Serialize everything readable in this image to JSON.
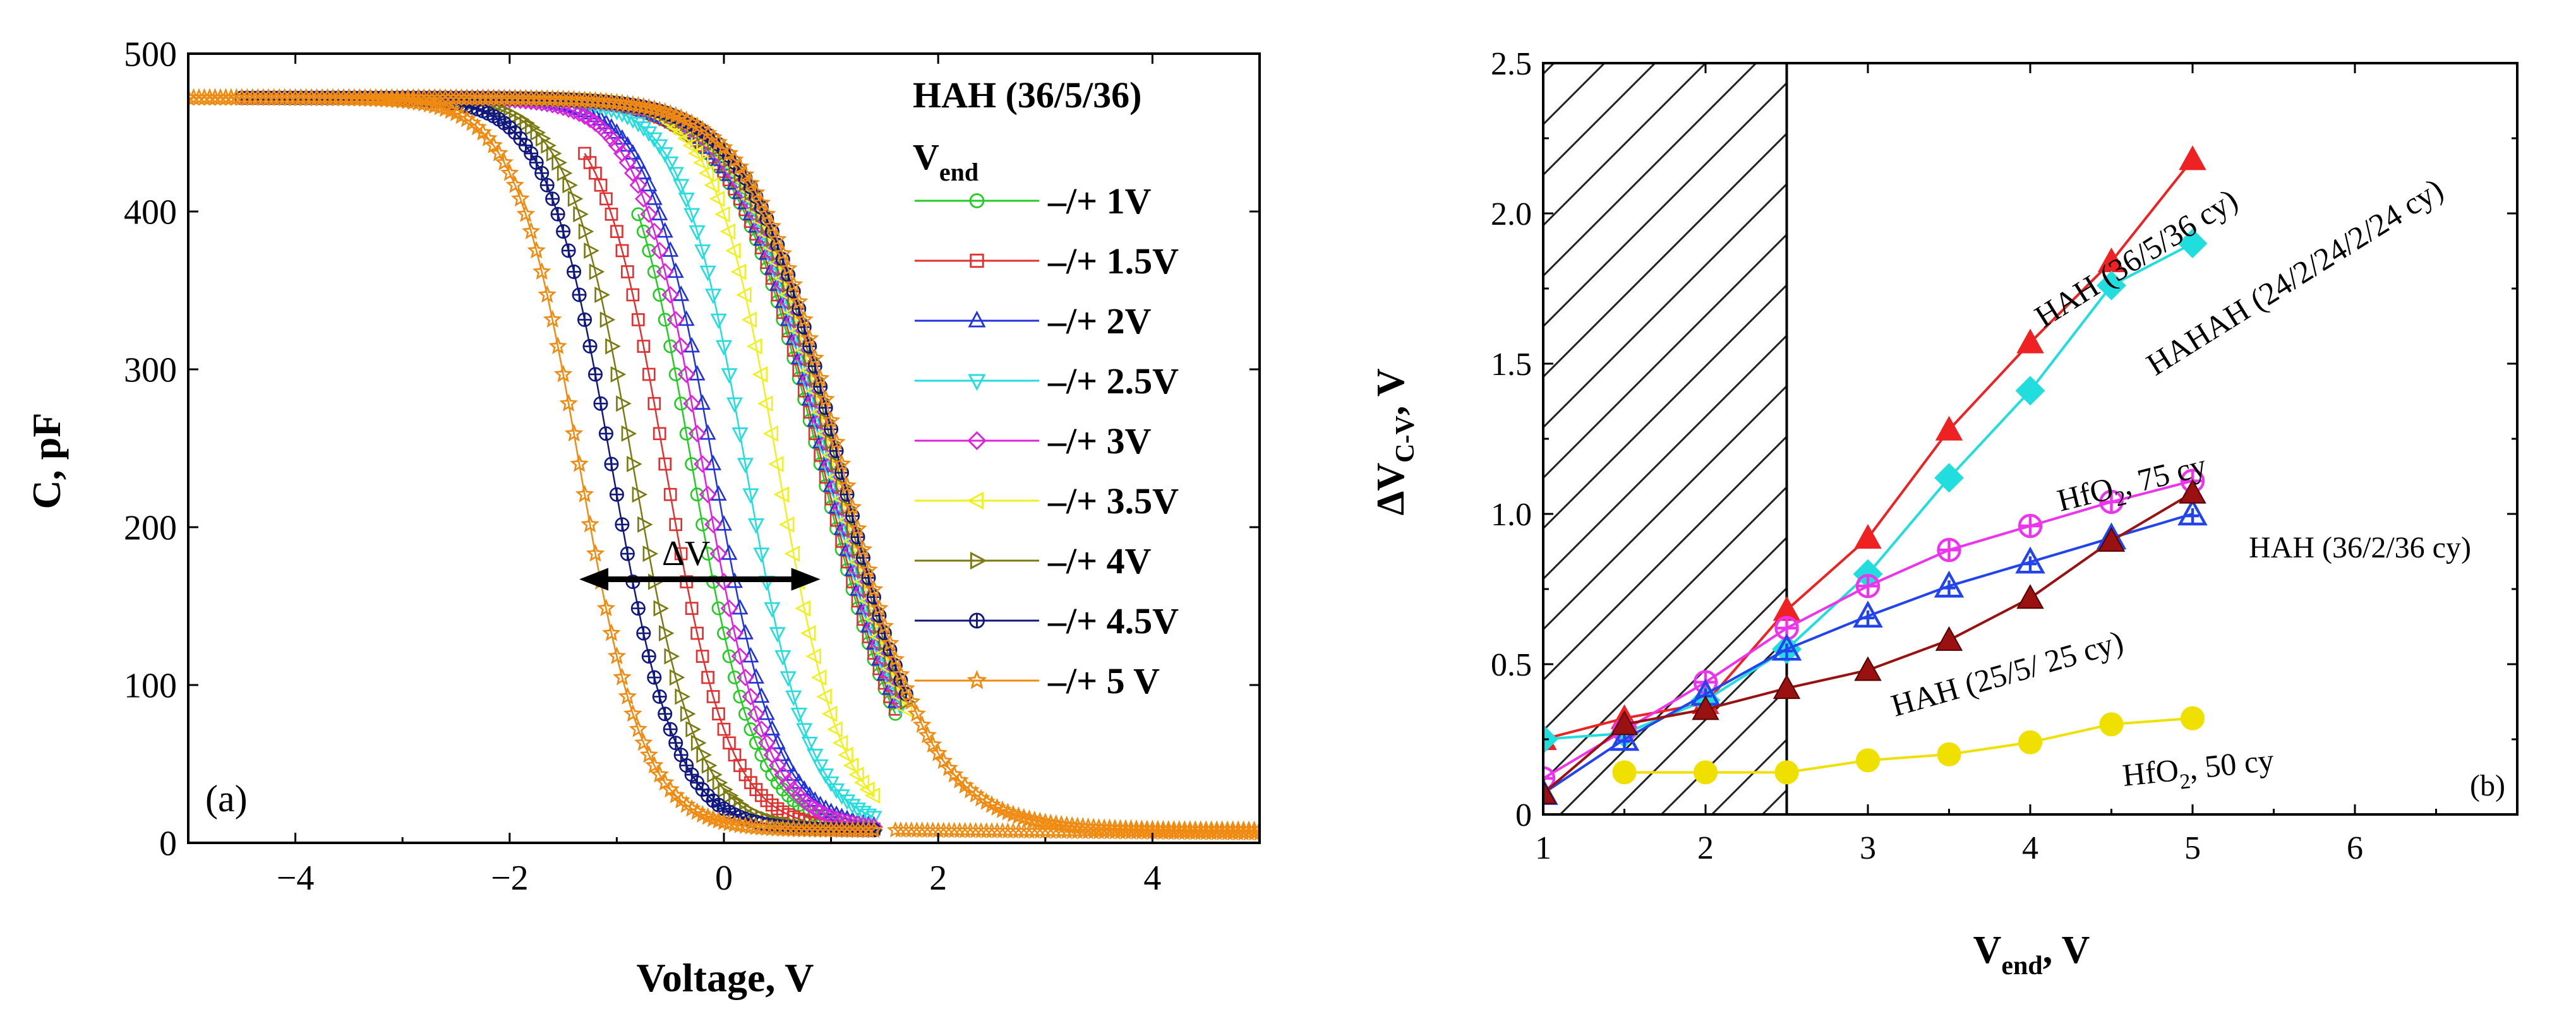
{
  "chart_data": [
    {
      "type": "line",
      "panel_label": "(a)",
      "xlabel": "Voltage, V",
      "ylabel": "C, pF",
      "xlim": [
        -5,
        5
      ],
      "ylim": [
        0,
        500
      ],
      "x_ticks": [
        -4,
        -2,
        0,
        2,
        4
      ],
      "x_tick_labels": [
        "−4",
        "−2",
        "0",
        "2",
        "4"
      ],
      "y_ticks": [
        0,
        100,
        200,
        300,
        400,
        500
      ],
      "y_tick_labels": [
        "0",
        "100",
        "200",
        "300",
        "400",
        "500"
      ],
      "legend_title": "HAH (36/5/36)",
      "legend_subtitle": "V",
      "legend_subtitle_sub": "end",
      "legend_position": "top-right",
      "annotation": "ΔV",
      "delta_v_arrow": [
        -1.35,
        0.9,
        167
      ],
      "cmax": 472,
      "cmin": 8,
      "series": [
        {
          "name": "–/+ 1V",
          "vend": 1.0,
          "color": "#22cc22",
          "marker": "circle",
          "left_v0": -0.3,
          "right_v0": 0.9
        },
        {
          "name": "–/+ 1.5V",
          "vend": 1.5,
          "color": "#e03030",
          "marker": "square",
          "left_v0": -0.55,
          "right_v0": 0.92
        },
        {
          "name": "–/+ 2V",
          "vend": 2.0,
          "color": "#2233dd",
          "marker": "triangle-up",
          "left_v0": -0.1,
          "right_v0": 0.95
        },
        {
          "name": "–/+ 2.5V",
          "vend": 2.5,
          "color": "#22dddd",
          "marker": "triangle-down",
          "left_v0": 0.2,
          "right_v0": 0.98
        },
        {
          "name": "–/+ 3V",
          "vend": 3.0,
          "color": "#dd22dd",
          "marker": "diamond",
          "left_v0": -0.2,
          "right_v0": 1.0
        },
        {
          "name": "–/+ 3.5V",
          "vend": 3.5,
          "color": "#f0f020",
          "marker": "triangle-left",
          "left_v0": 0.5,
          "right_v0": 1.02
        },
        {
          "name": "–/+ 4V",
          "vend": 4.0,
          "color": "#7a7a10",
          "marker": "triangle-right",
          "left_v0": -0.85,
          "right_v0": 1.05
        },
        {
          "name": "–/+ 4.5V",
          "vend": 4.5,
          "color": "#101880",
          "marker": "circle-plus",
          "left_v0": -1.05,
          "right_v0": 1.08
        },
        {
          "name": "–/+ 5 V",
          "vend": 5.0,
          "color": "#f08a10",
          "marker": "star",
          "left_v0": -1.35,
          "right_v0": 1.1
        }
      ]
    },
    {
      "type": "line",
      "panel_label": "(b)",
      "xlabel": "V",
      "xlabel_sub": "end",
      "xlabel_suffix": ", V",
      "ylabel": "ΔV",
      "ylabel_sub": "C-V",
      "ylabel_suffix": ", V",
      "xlim": [
        1,
        7
      ],
      "ylim": [
        0,
        2.5
      ],
      "x_ticks": [
        1,
        2,
        3,
        4,
        5,
        6
      ],
      "x_tick_labels": [
        "1",
        "2",
        "3",
        "4",
        "5",
        "6"
      ],
      "y_ticks": [
        0,
        0.5,
        1.0,
        1.5,
        2.0,
        2.5
      ],
      "y_tick_labels": [
        "0",
        "0.5",
        "1.0",
        "1.5",
        "2.0",
        "2.5"
      ],
      "hatched_region_x": [
        1,
        2.5
      ],
      "x": [
        1,
        1.5,
        2,
        2.5,
        3,
        3.5,
        4,
        4.5,
        5
      ],
      "series": [
        {
          "name": "HAH (36/5/36 cy)",
          "color": "#ee2222",
          "marker": "triangle-filled",
          "values": [
            0.25,
            0.32,
            0.37,
            0.68,
            0.92,
            1.28,
            1.57,
            1.84,
            2.18
          ]
        },
        {
          "name": "HAHAH (24/2/24/2/24 cy)",
          "color": "#22dddd",
          "marker": "diamond-filled",
          "values": [
            0.25,
            0.27,
            0.38,
            0.55,
            0.8,
            1.12,
            1.41,
            1.76,
            1.9
          ]
        },
        {
          "name": "HfO",
          "name_sub": "2",
          "name_suffix": ", 75 cy",
          "color": "#ee33ee",
          "marker": "circle-plus",
          "values": [
            0.12,
            0.28,
            0.44,
            0.62,
            0.76,
            0.88,
            0.96,
            1.04,
            1.11
          ]
        },
        {
          "name": "HAH (36/2/36 cy)",
          "color": "#2244ee",
          "marker": "triangle-plus",
          "values": [
            0.07,
            0.25,
            0.4,
            0.55,
            0.66,
            0.76,
            0.84,
            0.92,
            1.0
          ]
        },
        {
          "name": "HAH (25/5/ 25 cy)",
          "color": "#991111",
          "marker": "triangle-dark",
          "values": [
            0.07,
            0.3,
            0.35,
            0.42,
            0.48,
            0.58,
            0.72,
            0.91,
            1.07
          ]
        },
        {
          "name": "HfO",
          "name_sub": "2",
          "name_suffix": ", 50 cy",
          "color": "#f0e000",
          "marker": "circle-filled",
          "values": [
            null,
            0.14,
            0.14,
            0.14,
            0.18,
            0.2,
            0.24,
            0.3,
            0.32
          ]
        }
      ]
    }
  ]
}
